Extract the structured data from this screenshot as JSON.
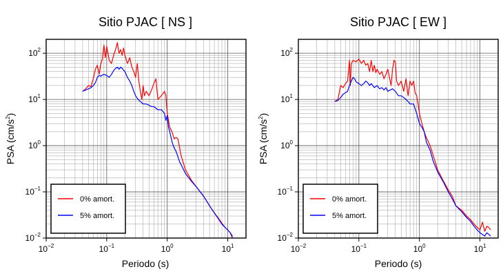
{
  "chart_data": [
    {
      "type": "line",
      "title": "Sitio PJAC [ NS ]",
      "xlabel": "Periodo (s)",
      "ylabel_base": "PSA (cm/s",
      "ylabel_sup": "2",
      "ylabel_close": ")",
      "xscale": "log",
      "yscale": "log",
      "xlim": [
        0.01,
        20
      ],
      "ylim": [
        0.01,
        200
      ],
      "grid": true,
      "legend_position": "bottom-left",
      "x_ticks": [
        {
          "base": "10",
          "exp": "−2"
        },
        {
          "base": "10",
          "exp": "−1"
        },
        {
          "base": "10",
          "exp": "0"
        },
        {
          "base": "10",
          "exp": "1"
        }
      ],
      "y_ticks": [
        {
          "base": "10",
          "exp": "−2"
        },
        {
          "base": "10",
          "exp": "−1"
        },
        {
          "base": "10",
          "exp": "0"
        },
        {
          "base": "10",
          "exp": "1"
        },
        {
          "base": "10",
          "exp": "2"
        }
      ],
      "series": [
        {
          "name": "0% amort.",
          "color": "#ff0000",
          "points": [
            [
              0.04,
              15
            ],
            [
              0.045,
              17
            ],
            [
              0.05,
              20
            ],
            [
              0.055,
              19
            ],
            [
              0.06,
              28
            ],
            [
              0.065,
              45
            ],
            [
              0.07,
              55
            ],
            [
              0.075,
              35
            ],
            [
              0.08,
              60
            ],
            [
              0.085,
              75
            ],
            [
              0.09,
              150
            ],
            [
              0.095,
              80
            ],
            [
              0.1,
              140
            ],
            [
              0.105,
              100
            ],
            [
              0.11,
              70
            ],
            [
              0.12,
              60
            ],
            [
              0.13,
              90
            ],
            [
              0.14,
              120
            ],
            [
              0.15,
              170
            ],
            [
              0.16,
              100
            ],
            [
              0.17,
              120
            ],
            [
              0.18,
              90
            ],
            [
              0.19,
              130
            ],
            [
              0.2,
              90
            ],
            [
              0.22,
              60
            ],
            [
              0.24,
              80
            ],
            [
              0.26,
              50
            ],
            [
              0.28,
              40
            ],
            [
              0.3,
              30
            ],
            [
              0.32,
              60
            ],
            [
              0.34,
              25
            ],
            [
              0.36,
              15
            ],
            [
              0.38,
              10
            ],
            [
              0.4,
              20
            ],
            [
              0.42,
              12
            ],
            [
              0.45,
              15
            ],
            [
              0.5,
              12
            ],
            [
              0.55,
              16
            ],
            [
              0.6,
              22
            ],
            [
              0.65,
              28
            ],
            [
              0.7,
              10
            ],
            [
              0.8,
              12
            ],
            [
              0.9,
              15
            ],
            [
              0.95,
              12
            ],
            [
              1.0,
              5
            ],
            [
              1.1,
              2.5
            ],
            [
              1.2,
              2.0
            ],
            [
              1.3,
              1.4
            ],
            [
              1.4,
              1.5
            ],
            [
              1.5,
              1.4
            ],
            [
              1.7,
              0.6
            ],
            [
              2.0,
              0.3
            ],
            [
              2.5,
              0.18
            ],
            [
              3.0,
              0.13
            ],
            [
              4.0,
              0.08
            ],
            [
              5.0,
              0.05
            ],
            [
              6.0,
              0.035
            ],
            [
              7.0,
              0.027
            ],
            [
              8.0,
              0.021
            ],
            [
              9.0,
              0.017
            ],
            [
              10.0,
              0.015
            ],
            [
              11.0,
              0.013
            ],
            [
              12.0,
              0.011
            ]
          ]
        },
        {
          "name": "5% amort.",
          "color": "#0000ff",
          "points": [
            [
              0.04,
              15
            ],
            [
              0.045,
              16
            ],
            [
              0.05,
              17
            ],
            [
              0.055,
              18
            ],
            [
              0.06,
              20
            ],
            [
              0.065,
              23
            ],
            [
              0.07,
              30
            ],
            [
              0.075,
              33
            ],
            [
              0.08,
              32
            ],
            [
              0.09,
              35
            ],
            [
              0.1,
              33
            ],
            [
              0.11,
              30
            ],
            [
              0.12,
              35
            ],
            [
              0.13,
              42
            ],
            [
              0.14,
              47
            ],
            [
              0.15,
              50
            ],
            [
              0.16,
              45
            ],
            [
              0.17,
              50
            ],
            [
              0.18,
              47
            ],
            [
              0.2,
              40
            ],
            [
              0.22,
              30
            ],
            [
              0.24,
              25
            ],
            [
              0.26,
              20
            ],
            [
              0.28,
              15
            ],
            [
              0.3,
              12
            ],
            [
              0.33,
              10
            ],
            [
              0.36,
              9
            ],
            [
              0.4,
              8
            ],
            [
              0.45,
              8
            ],
            [
              0.5,
              7.5
            ],
            [
              0.55,
              7
            ],
            [
              0.6,
              7
            ],
            [
              0.7,
              6
            ],
            [
              0.8,
              6
            ],
            [
              0.9,
              5
            ],
            [
              0.95,
              3.5
            ],
            [
              1.0,
              4.5
            ],
            [
              1.05,
              2.5
            ],
            [
              1.1,
              2.0
            ],
            [
              1.2,
              1.2
            ],
            [
              1.3,
              0.9
            ],
            [
              1.4,
              0.75
            ],
            [
              1.6,
              0.45
            ],
            [
              2.0,
              0.25
            ],
            [
              2.5,
              0.17
            ],
            [
              3.0,
              0.13
            ],
            [
              4.0,
              0.08
            ],
            [
              5.0,
              0.05
            ],
            [
              6.0,
              0.035
            ],
            [
              7.0,
              0.026
            ],
            [
              8.0,
              0.02
            ],
            [
              9.0,
              0.017
            ],
            [
              10.0,
              0.015
            ],
            [
              11.0,
              0.013
            ],
            [
              12.0,
              0.01
            ]
          ]
        }
      ]
    },
    {
      "type": "line",
      "title": "Sitio PJAC [ EW ]",
      "xlabel": "Periodo (s)",
      "ylabel_base": "PSA (cm/s",
      "ylabel_sup": "2",
      "ylabel_close": ")",
      "xscale": "log",
      "yscale": "log",
      "xlim": [
        0.01,
        20
      ],
      "ylim": [
        0.01,
        200
      ],
      "grid": true,
      "legend_position": "bottom-left",
      "x_ticks": [
        {
          "base": "10",
          "exp": "−2"
        },
        {
          "base": "10",
          "exp": "−1"
        },
        {
          "base": "10",
          "exp": "0"
        },
        {
          "base": "10",
          "exp": "1"
        }
      ],
      "y_ticks": [
        {
          "base": "10",
          "exp": "−2"
        },
        {
          "base": "10",
          "exp": "−1"
        },
        {
          "base": "10",
          "exp": "0"
        },
        {
          "base": "10",
          "exp": "1"
        },
        {
          "base": "10",
          "exp": "2"
        }
      ],
      "series": [
        {
          "name": "0% amort.",
          "color": "#ff0000",
          "points": [
            [
              0.04,
              9
            ],
            [
              0.045,
              10
            ],
            [
              0.05,
              20
            ],
            [
              0.055,
              18
            ],
            [
              0.06,
              22
            ],
            [
              0.065,
              25
            ],
            [
              0.07,
              70
            ],
            [
              0.072,
              20
            ],
            [
              0.075,
              60
            ],
            [
              0.08,
              70
            ],
            [
              0.09,
              65
            ],
            [
              0.1,
              75
            ],
            [
              0.11,
              60
            ],
            [
              0.12,
              70
            ],
            [
              0.13,
              55
            ],
            [
              0.14,
              60
            ],
            [
              0.15,
              40
            ],
            [
              0.16,
              70
            ],
            [
              0.17,
              40
            ],
            [
              0.18,
              55
            ],
            [
              0.19,
              38
            ],
            [
              0.2,
              45
            ],
            [
              0.22,
              35
            ],
            [
              0.24,
              40
            ],
            [
              0.26,
              28
            ],
            [
              0.28,
              35
            ],
            [
              0.3,
              45
            ],
            [
              0.32,
              30
            ],
            [
              0.34,
              20
            ],
            [
              0.36,
              45
            ],
            [
              0.38,
              70
            ],
            [
              0.4,
              65
            ],
            [
              0.42,
              25
            ],
            [
              0.45,
              20
            ],
            [
              0.5,
              25
            ],
            [
              0.55,
              15
            ],
            [
              0.6,
              28
            ],
            [
              0.65,
              12
            ],
            [
              0.7,
              25
            ],
            [
              0.75,
              20
            ],
            [
              0.8,
              25
            ],
            [
              0.85,
              14
            ],
            [
              0.9,
              12
            ],
            [
              0.95,
              8
            ],
            [
              1.0,
              5
            ],
            [
              1.1,
              3
            ],
            [
              1.2,
              2
            ],
            [
              1.3,
              1.5
            ],
            [
              1.5,
              1.0
            ],
            [
              1.7,
              0.6
            ],
            [
              2.0,
              0.3
            ],
            [
              2.5,
              0.17
            ],
            [
              3.0,
              0.11
            ],
            [
              3.5,
              0.08
            ],
            [
              4.0,
              0.05
            ],
            [
              5.0,
              0.04
            ],
            [
              6.0,
              0.03
            ],
            [
              7.0,
              0.025
            ],
            [
              8.0,
              0.02
            ],
            [
              9.0,
              0.017
            ],
            [
              10.0,
              0.015
            ],
            [
              11.0,
              0.022
            ],
            [
              12.0,
              0.014
            ],
            [
              13.0,
              0.018
            ],
            [
              14.0,
              0.017
            ],
            [
              15.0,
              0.015
            ]
          ]
        },
        {
          "name": "5% amort.",
          "color": "#0000ff",
          "points": [
            [
              0.04,
              9
            ],
            [
              0.045,
              9.5
            ],
            [
              0.05,
              11
            ],
            [
              0.055,
              13
            ],
            [
              0.06,
              14
            ],
            [
              0.065,
              15
            ],
            [
              0.07,
              20
            ],
            [
              0.075,
              25
            ],
            [
              0.08,
              30
            ],
            [
              0.085,
              28
            ],
            [
              0.09,
              24
            ],
            [
              0.1,
              22
            ],
            [
              0.11,
              20
            ],
            [
              0.12,
              22
            ],
            [
              0.13,
              25
            ],
            [
              0.14,
              23
            ],
            [
              0.15,
              20
            ],
            [
              0.16,
              22
            ],
            [
              0.17,
              20
            ],
            [
              0.18,
              18
            ],
            [
              0.2,
              20
            ],
            [
              0.22,
              17
            ],
            [
              0.24,
              18
            ],
            [
              0.26,
              16
            ],
            [
              0.28,
              18
            ],
            [
              0.3,
              15
            ],
            [
              0.33,
              16
            ],
            [
              0.36,
              17
            ],
            [
              0.4,
              15
            ],
            [
              0.45,
              12
            ],
            [
              0.5,
              12
            ],
            [
              0.55,
              11
            ],
            [
              0.6,
              10
            ],
            [
              0.65,
              9
            ],
            [
              0.7,
              8
            ],
            [
              0.8,
              8
            ],
            [
              0.9,
              5
            ],
            [
              1.0,
              3
            ],
            [
              1.1,
              2.5
            ],
            [
              1.2,
              2
            ],
            [
              1.3,
              1.2
            ],
            [
              1.5,
              0.8
            ],
            [
              1.7,
              0.45
            ],
            [
              2.0,
              0.27
            ],
            [
              2.5,
              0.16
            ],
            [
              3.0,
              0.1
            ],
            [
              3.5,
              0.07
            ],
            [
              4.0,
              0.05
            ],
            [
              5.0,
              0.037
            ],
            [
              6.0,
              0.028
            ],
            [
              7.0,
              0.023
            ],
            [
              8.0,
              0.018
            ],
            [
              9.0,
              0.015
            ],
            [
              10.0,
              0.013
            ],
            [
              11.0,
              0.012
            ],
            [
              12.0,
              0.011
            ],
            [
              13.0,
              0.013
            ],
            [
              14.0,
              0.012
            ],
            [
              15.0,
              0.011
            ]
          ]
        }
      ]
    }
  ]
}
